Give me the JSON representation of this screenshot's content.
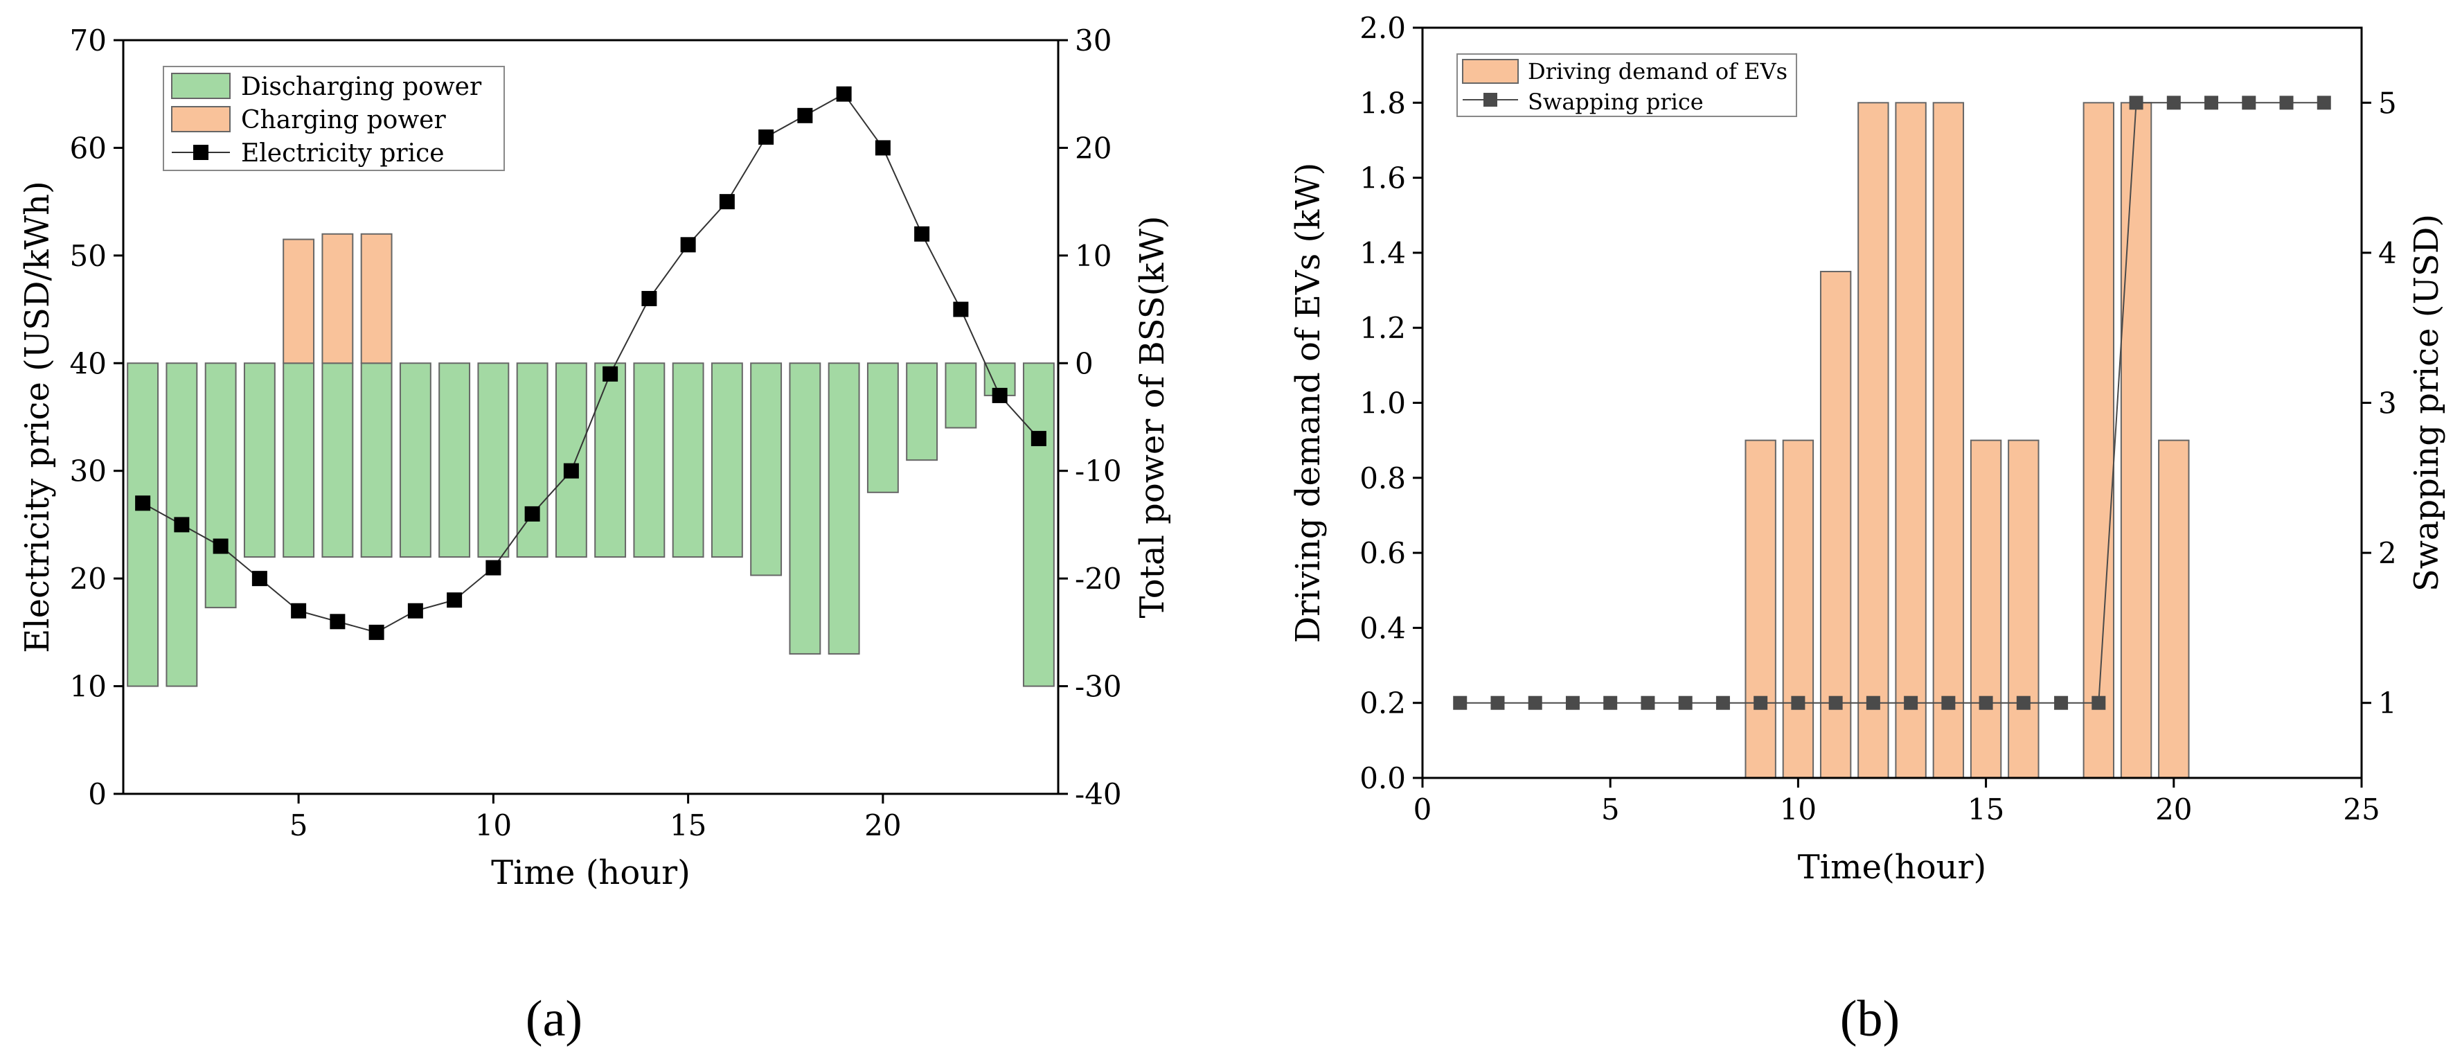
{
  "figure": {
    "panels": [
      {
        "id": "a",
        "label": "(a)"
      },
      {
        "id": "b",
        "label": "(b)"
      }
    ]
  },
  "colors": {
    "discharging": "#a3d9a3",
    "charging": "#f9c29a",
    "bar_edge": "#666666",
    "price_marker": "#000000",
    "swap_marker": "#4a4a4a",
    "axis": "#000000"
  },
  "chart_data": [
    {
      "id": "a",
      "type": "bar",
      "xlabel": "Time (hour)",
      "ylabel": "Electricity price (USD/kWh)",
      "y2label": "Total power of BSS(kW)",
      "xlim": [
        0.5,
        24.5
      ],
      "ylim": [
        0,
        70
      ],
      "y2lim": [
        -40,
        30
      ],
      "xticks": [
        5,
        10,
        15,
        20
      ],
      "yticks": [
        0,
        10,
        20,
        30,
        40,
        50,
        60,
        70
      ],
      "y2ticks": [
        -40,
        -30,
        -20,
        -10,
        0,
        10,
        20,
        30
      ],
      "legend": {
        "position": "top-left",
        "entries": [
          "Discharging power",
          "Charging power",
          "Electricity price"
        ]
      },
      "hours": [
        1,
        2,
        3,
        4,
        5,
        6,
        7,
        8,
        9,
        10,
        11,
        12,
        13,
        14,
        15,
        16,
        17,
        18,
        19,
        20,
        21,
        22,
        23,
        24
      ],
      "series": [
        {
          "name": "Discharging power",
          "axis": "right",
          "type": "bar",
          "values": [
            -30,
            -30,
            -22.7,
            -18,
            -18,
            -18,
            -18,
            -18,
            -18,
            -18,
            -18,
            -18,
            -18,
            -18,
            -18,
            -18,
            -19.7,
            -27,
            -27,
            -12,
            -9,
            -6,
            -3,
            -30
          ]
        },
        {
          "name": "Charging power",
          "axis": "right",
          "type": "bar",
          "values": [
            0,
            0,
            0,
            0,
            11.5,
            12,
            12,
            0,
            0,
            0,
            0,
            0,
            0,
            0,
            0,
            0,
            0,
            0,
            0,
            0,
            0,
            0,
            0,
            0
          ]
        },
        {
          "name": "Electricity price",
          "axis": "left",
          "type": "line",
          "values": [
            27,
            25,
            23,
            20,
            17,
            16,
            15,
            17,
            18,
            21,
            26,
            30,
            39,
            46,
            51,
            55,
            61,
            63,
            65,
            60,
            52,
            45,
            37,
            33
          ]
        }
      ]
    },
    {
      "id": "b",
      "type": "bar",
      "xlabel": "Time(hour)",
      "ylabel": "Driving demand of EVs (kW)",
      "y2label": "Swapping price (USD)",
      "xlim": [
        0,
        25
      ],
      "ylim": [
        0,
        2.0
      ],
      "y2lim": [
        0.5,
        5.5
      ],
      "xticks": [
        0,
        5,
        10,
        15,
        20,
        25
      ],
      "yticks": [
        "0.0",
        "0.2",
        "0.4",
        "0.6",
        "0.8",
        "1.0",
        "1.2",
        "1.4",
        "1.6",
        "1.8",
        "2.0"
      ],
      "y2ticks": [
        1,
        2,
        3,
        4,
        5
      ],
      "legend": {
        "position": "top-left",
        "entries": [
          "Driving demand of EVs",
          "Swapping price"
        ]
      },
      "series": [
        {
          "name": "Driving demand of EVs",
          "axis": "left",
          "type": "bar",
          "x": [
            9,
            10,
            11,
            12,
            13,
            14,
            15,
            16,
            18,
            19,
            20
          ],
          "values": [
            0.9,
            0.9,
            1.35,
            1.8,
            1.8,
            1.8,
            0.9,
            0.9,
            1.8,
            1.8,
            0.9
          ]
        },
        {
          "name": "Swapping price",
          "axis": "right",
          "type": "line",
          "x": [
            1,
            2,
            3,
            4,
            5,
            6,
            7,
            8,
            9,
            10,
            11,
            12,
            13,
            14,
            15,
            16,
            17,
            18,
            19,
            20,
            21,
            22,
            23,
            24
          ],
          "values": [
            1,
            1,
            1,
            1,
            1,
            1,
            1,
            1,
            1,
            1,
            1,
            1,
            1,
            1,
            1,
            1,
            1,
            1,
            5,
            5,
            5,
            5,
            5,
            5
          ]
        }
      ]
    }
  ]
}
